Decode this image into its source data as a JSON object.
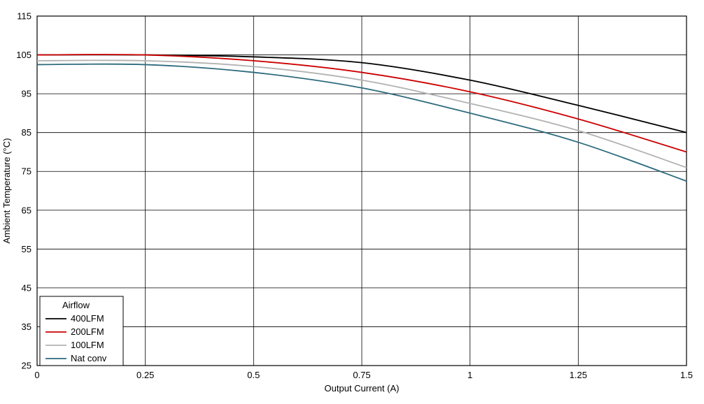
{
  "chart_data": {
    "type": "line",
    "title": "",
    "xlabel": "Output Current (A)",
    "ylabel": "Ambient Temperature (°C)",
    "xlim": [
      0,
      1.5
    ],
    "ylim": [
      25,
      115
    ],
    "x_ticks": [
      0,
      0.25,
      0.5,
      0.75,
      1,
      1.25,
      1.5
    ],
    "x_tick_labels": [
      "0",
      "0.25",
      "0.5",
      "0.75",
      "1",
      "1.25",
      "1.5"
    ],
    "y_ticks": [
      25,
      35,
      45,
      55,
      65,
      75,
      85,
      95,
      105,
      115
    ],
    "y_tick_labels": [
      "25",
      "35",
      "45",
      "55",
      "65",
      "75",
      "85",
      "95",
      "105",
      "115"
    ],
    "grid": true,
    "legend": {
      "title": "Airflow",
      "position": "bottom-left"
    },
    "x": [
      0,
      0.25,
      0.5,
      0.75,
      1,
      1.25,
      1.5
    ],
    "series": [
      {
        "name": "400LFM",
        "color": "#000000",
        "values": [
          105,
          105,
          104.5,
          103,
          98.5,
          92,
          85
        ]
      },
      {
        "name": "200LFM",
        "color": "#cc0000",
        "values": [
          105,
          105,
          103.5,
          100.5,
          95.5,
          88.5,
          80
        ]
      },
      {
        "name": "100LFM",
        "color": "#b2b2b2",
        "values": [
          103.5,
          103.5,
          102,
          98.5,
          92.5,
          85.5,
          76
        ]
      },
      {
        "name": "Nat conv",
        "color": "#2d6b7d",
        "values": [
          102.5,
          102.5,
          100.5,
          96.5,
          90,
          82.5,
          72.5
        ]
      }
    ]
  }
}
